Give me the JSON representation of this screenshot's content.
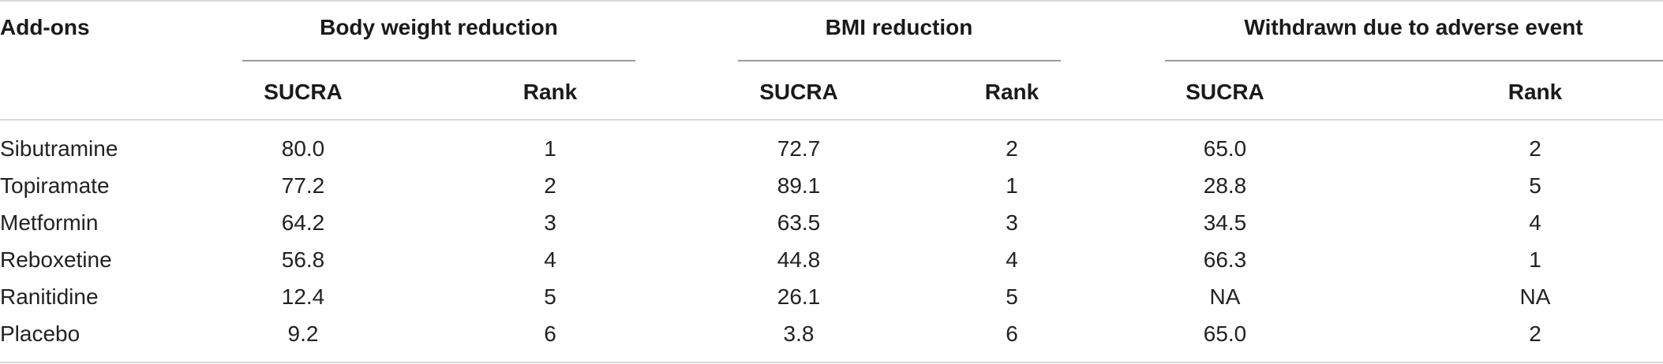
{
  "table": {
    "header": {
      "addons_label": "Add-ons",
      "groups": [
        "Body weight reduction",
        "BMI reduction",
        "Withdrawn due to adverse event"
      ],
      "subheaders": [
        "SUCRA",
        "Rank",
        "SUCRA",
        "Rank",
        "SUCRA",
        "Rank"
      ]
    },
    "rows": [
      {
        "name": "Sibutramine",
        "values": [
          "80.0",
          "1",
          "72.7",
          "2",
          "65.0",
          "2"
        ]
      },
      {
        "name": "Topiramate",
        "values": [
          "77.2",
          "2",
          "89.1",
          "1",
          "28.8",
          "5"
        ]
      },
      {
        "name": "Metformin",
        "values": [
          "64.2",
          "3",
          "63.5",
          "3",
          "34.5",
          "4"
        ]
      },
      {
        "name": "Reboxetine",
        "values": [
          "56.8",
          "4",
          "44.8",
          "4",
          "66.3",
          "1"
        ]
      },
      {
        "name": "Ranitidine",
        "values": [
          "12.4",
          "5",
          "26.1",
          "5",
          "NA",
          "NA"
        ]
      },
      {
        "name": "Placebo",
        "values": [
          "9.2",
          "6",
          "3.8",
          "6",
          "65.0",
          "2"
        ]
      }
    ]
  }
}
